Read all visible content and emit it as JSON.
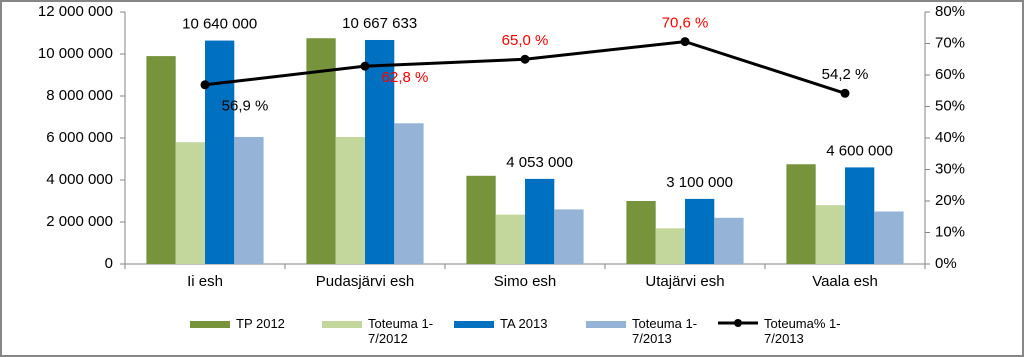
{
  "chart_data": {
    "type": "bar-line",
    "categories": [
      "Ii esh",
      "Pudasjärvi esh",
      "Simo esh",
      "Utajärvi esh",
      "Vaala esh"
    ],
    "series": [
      {
        "name": "TP 2012",
        "color": "#77933c",
        "values": [
          9900000,
          10750000,
          4200000,
          3000000,
          4750000
        ]
      },
      {
        "name": "Toteuma 1-7/2012",
        "color": "#c3d69b",
        "values": [
          5800000,
          6050000,
          2350000,
          1700000,
          2800000
        ]
      },
      {
        "name": "TA 2013",
        "color": "#0070c0",
        "values": [
          10640000,
          10667633,
          4053000,
          3100000,
          4600000
        ],
        "value_labels": [
          "10 640 000",
          "10 667 633",
          "4 053 000",
          "3 100 000",
          "4 600 000"
        ]
      },
      {
        "name": "Toteuma 1-7/2013",
        "color": "#95b3d7",
        "values": [
          6050000,
          6700000,
          2600000,
          2200000,
          2500000
        ]
      },
      {
        "name": "Toteuma% 1-7/2013",
        "color": "#000000",
        "axis": "y2",
        "kind": "line",
        "values": [
          56.9,
          62.8,
          65.0,
          70.6,
          54.2
        ],
        "value_labels": [
          "56,9 %",
          "62,8 %",
          "65,0 %",
          "70,6 %",
          "54,2 %"
        ],
        "value_label_colors": [
          "#000000",
          "#ff0000",
          "#ff0000",
          "#ff0000",
          "#000000"
        ]
      }
    ],
    "ylim": [
      0,
      12000000
    ],
    "yticks": [
      0,
      {
        "value": 2000000,
        "label": "2 000 000"
      },
      {
        "value": 4000000,
        "label": "4 000 000"
      },
      {
        "value": 6000000,
        "label": "6 000 000"
      },
      {
        "value": 8000000,
        "label": "8 000 000"
      },
      {
        "value": 10000000,
        "label": "10 000 000"
      },
      {
        "value": 12000000,
        "label": "12 000 000"
      }
    ],
    "y2lim": [
      0,
      80
    ],
    "y2ticks": [
      {
        "value": 0,
        "label": "0%"
      },
      {
        "value": 10,
        "label": "10%"
      },
      {
        "value": 20,
        "label": "20%"
      },
      {
        "value": 30,
        "label": "30%"
      },
      {
        "value": 40,
        "label": "40%"
      },
      {
        "value": 50,
        "label": "50%"
      },
      {
        "value": 60,
        "label": "60%"
      },
      {
        "value": 70,
        "label": "70%"
      },
      {
        "value": 80,
        "label": "80%"
      }
    ],
    "legend": "bottom"
  }
}
